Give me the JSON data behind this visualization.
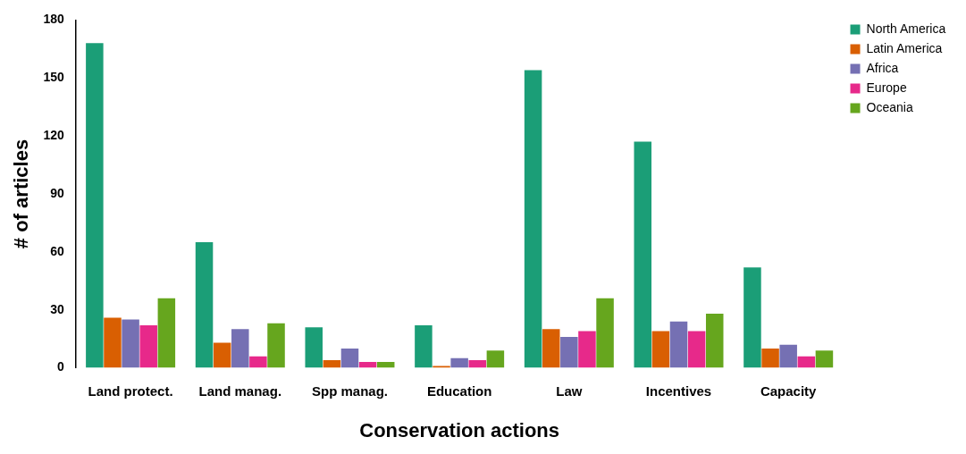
{
  "chart_data": {
    "type": "bar",
    "xlabel": "Conservation actions",
    "ylabel": "# of articles",
    "categories": [
      "Land protect.",
      "Land manag.",
      "Spp manag.",
      "Education",
      "Law",
      "Incentives",
      "Capacity"
    ],
    "series": [
      {
        "name": "North America",
        "color": "#1b9e77",
        "values": [
          168,
          65,
          21,
          22,
          154,
          117,
          52
        ]
      },
      {
        "name": "Latin America",
        "color": "#d95f02",
        "values": [
          26,
          13,
          4,
          1,
          20,
          19,
          10
        ]
      },
      {
        "name": "Africa",
        "color": "#7570b3",
        "values": [
          25,
          20,
          10,
          5,
          16,
          24,
          12
        ]
      },
      {
        "name": "Europe",
        "color": "#e7298a",
        "values": [
          22,
          6,
          3,
          4,
          19,
          19,
          6
        ]
      },
      {
        "name": "Oceania",
        "color": "#66a61e",
        "values": [
          36,
          23,
          3,
          9,
          36,
          28,
          9
        ]
      }
    ],
    "ylim": [
      0,
      180
    ],
    "yticks": [
      0,
      30,
      60,
      90,
      120,
      150,
      180
    ],
    "grid": false,
    "legend": "top right"
  }
}
